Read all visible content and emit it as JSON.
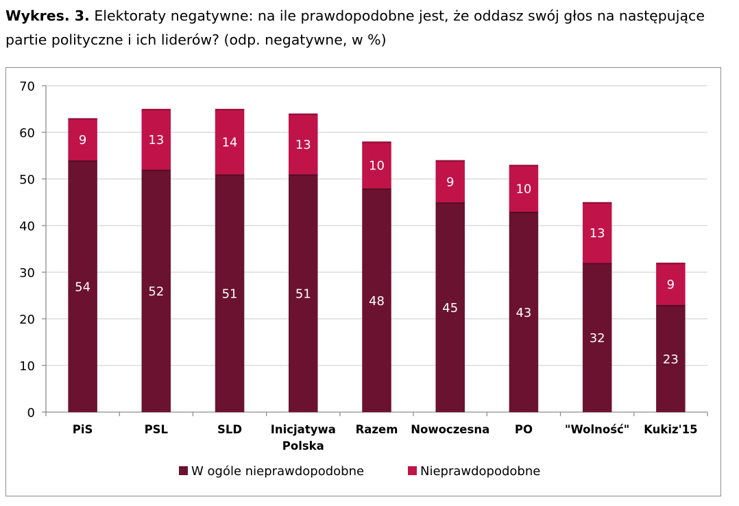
{
  "caption": {
    "label": "Wykres. 3.",
    "text": " Elektoraty negatywne:  na ile prawdopodobne jest, że oddasz swój głos na następujące partie polityczne i ich liderów? (odp. negatywne,  w %)"
  },
  "chart_data": {
    "type": "bar",
    "stacked": true,
    "categories": [
      "PiS",
      "PSL",
      "SLD",
      "Inicjatywa Polska",
      "Razem",
      "Nowoczesna",
      "PO",
      "\"Wolność\"",
      "Kukiz'15"
    ],
    "series": [
      {
        "name": "W ogóle nieprawdopodobne",
        "color": "#6b1230",
        "values": [
          54,
          52,
          51,
          51,
          48,
          45,
          43,
          32,
          23
        ]
      },
      {
        "name": "Nieprawdopodobne",
        "color": "#c0134a",
        "values": [
          9,
          13,
          14,
          13,
          10,
          9,
          10,
          13,
          9
        ]
      }
    ],
    "ylim": [
      0,
      70
    ],
    "yticks": [
      0,
      10,
      20,
      30,
      40,
      50,
      60,
      70
    ],
    "grid": true,
    "legend_position": "bottom"
  }
}
